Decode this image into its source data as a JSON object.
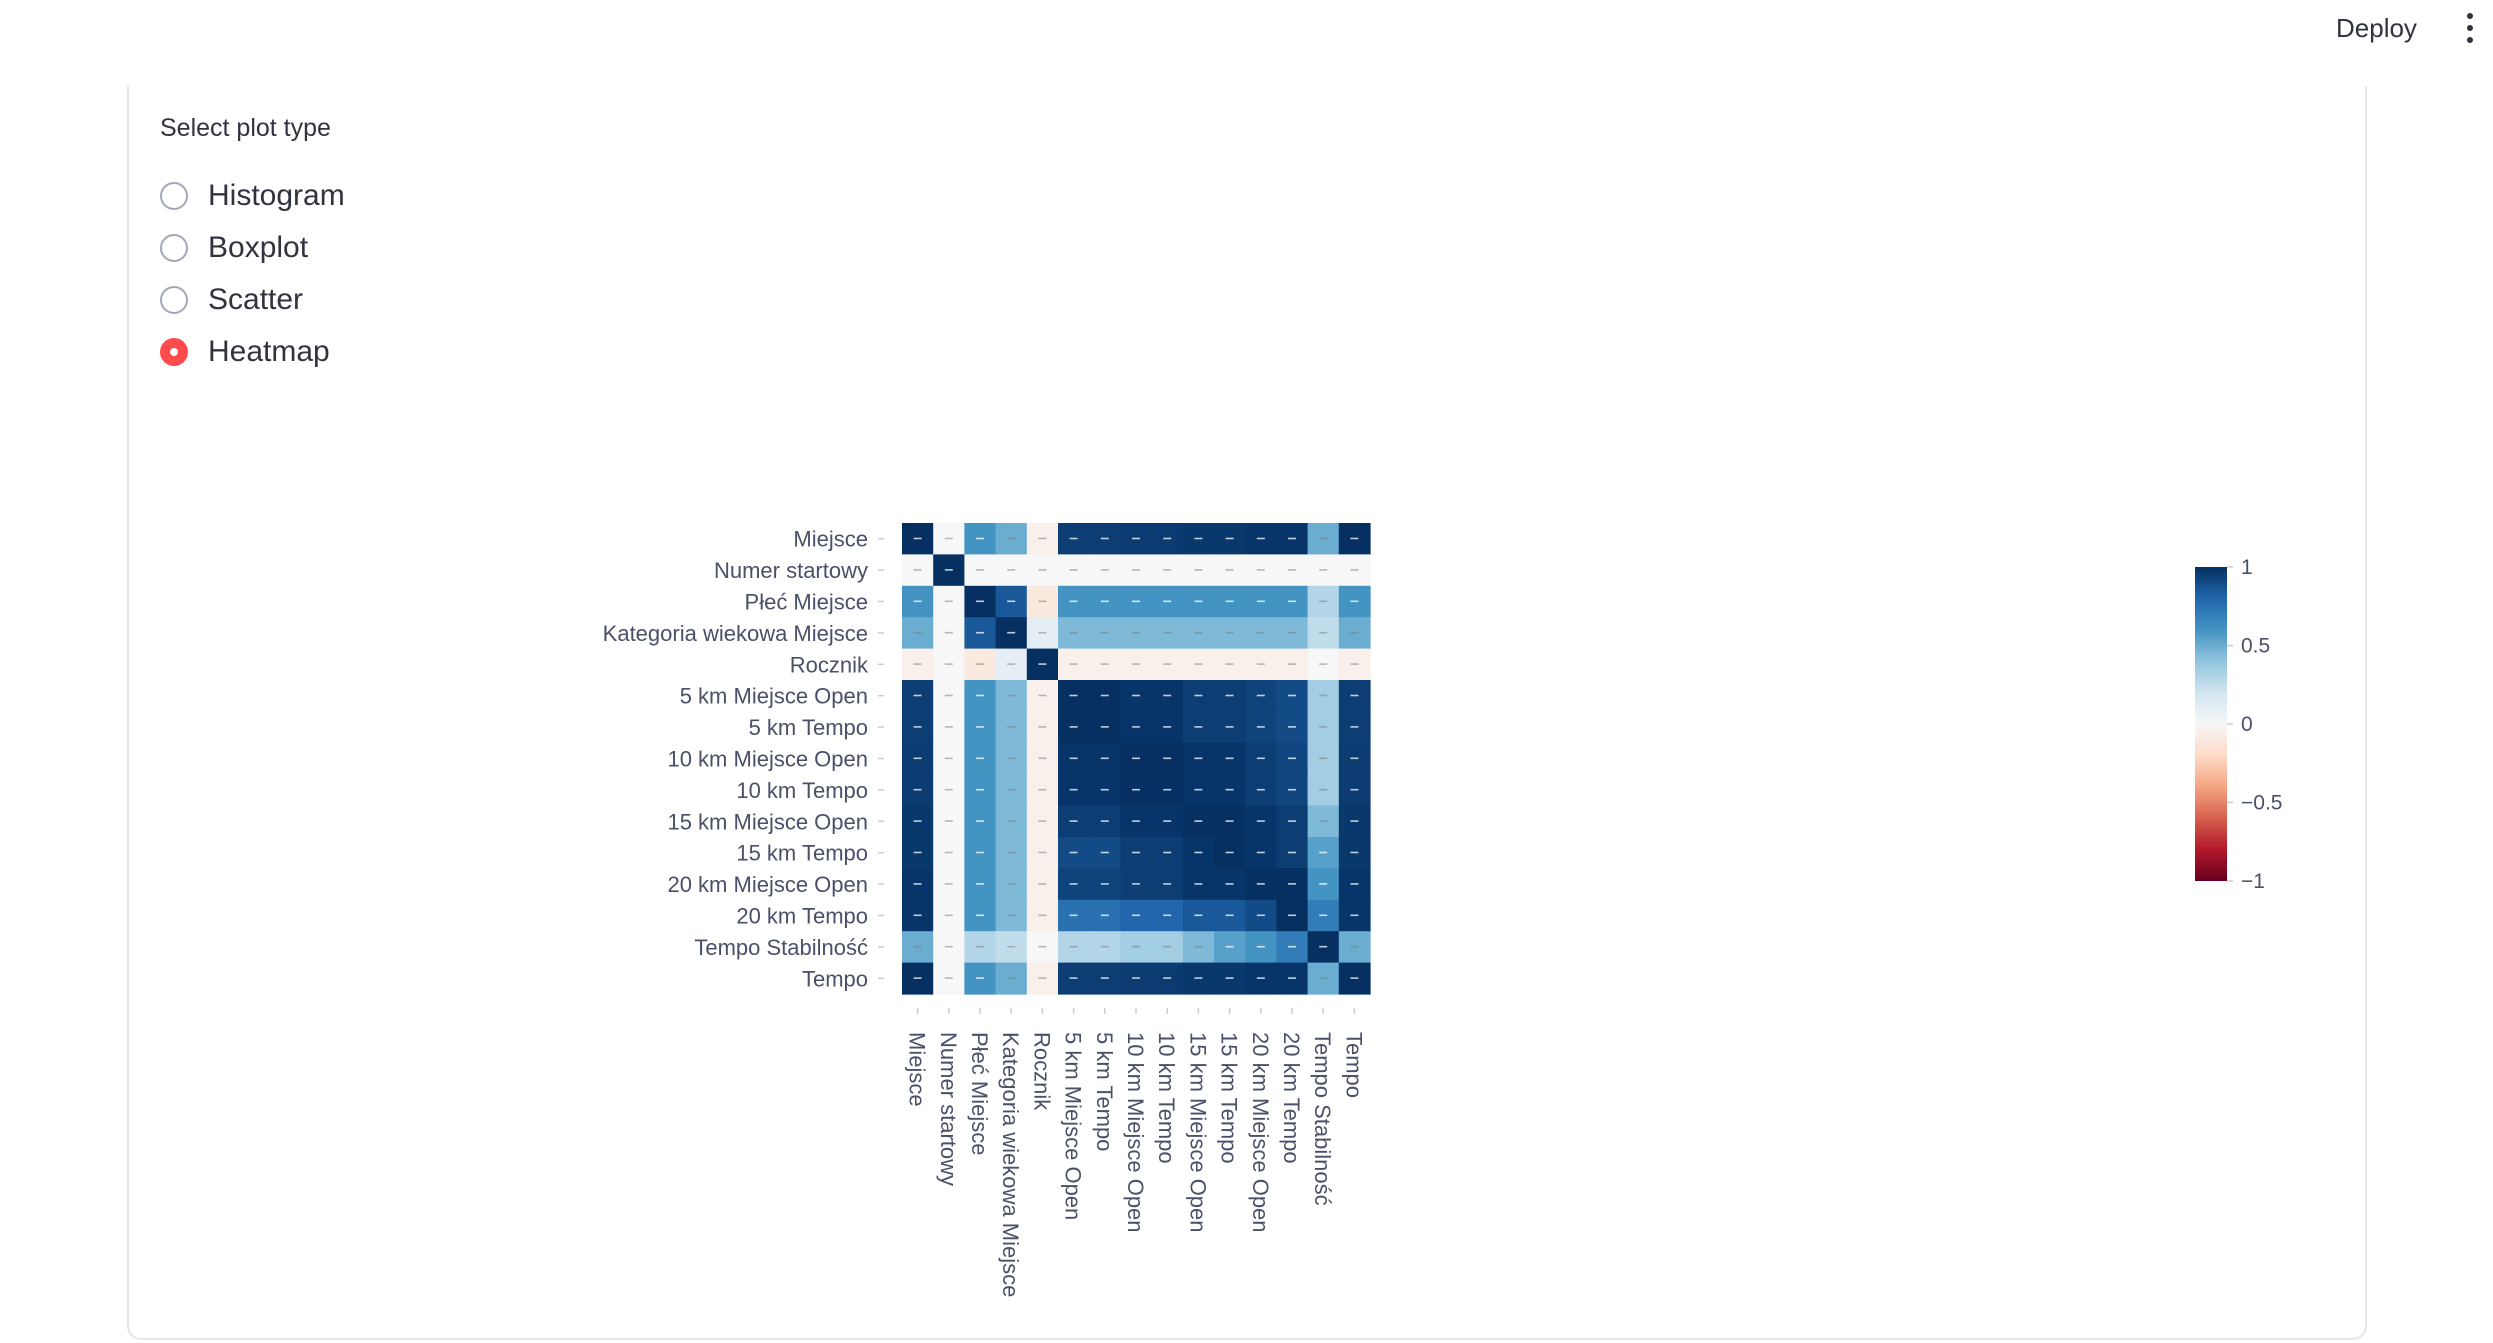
{
  "header": {
    "deploy_label": "Deploy",
    "menu_icon": "more-vertical-icon"
  },
  "plot_selector": {
    "label": "Select plot type",
    "options": [
      "Histogram",
      "Boxplot",
      "Scatter",
      "Heatmap"
    ],
    "selected": "Heatmap"
  },
  "colors": {
    "accent": "#ff4b4b",
    "text": "#31333f",
    "border": "#e6e6ea"
  },
  "chart_data": {
    "type": "heatmap",
    "title": "",
    "labels": [
      "Miejsce",
      "Numer startowy",
      "Płeć Miejsce",
      "Kategoria wiekowa Miejsce",
      "Rocznik",
      "5 km Miejsce Open",
      "5 km Tempo",
      "10 km Miejsce Open",
      "10 km Tempo",
      "15 km Miejsce Open",
      "15 km Tempo",
      "20 km Miejsce Open",
      "20 km Tempo",
      "Tempo Stabilność",
      "Tempo"
    ],
    "matrix": [
      [
        1,
        0,
        0.6,
        0.5,
        -0.05,
        0.95,
        0.95,
        0.96,
        0.96,
        0.97,
        0.97,
        0.98,
        0.98,
        0.5,
        1
      ],
      [
        0,
        1,
        0,
        0,
        0,
        0,
        0,
        0,
        0,
        0,
        0,
        0,
        0,
        0,
        0
      ],
      [
        0.6,
        0,
        1,
        0.85,
        -0.1,
        0.6,
        0.6,
        0.6,
        0.6,
        0.6,
        0.6,
        0.6,
        0.6,
        0.3,
        0.6
      ],
      [
        0.5,
        0,
        0.85,
        1,
        0.1,
        0.45,
        0.45,
        0.45,
        0.45,
        0.45,
        0.45,
        0.45,
        0.45,
        0.25,
        0.5
      ],
      [
        -0.05,
        0,
        -0.1,
        0.1,
        1,
        -0.05,
        -0.05,
        -0.05,
        -0.05,
        -0.05,
        -0.05,
        -0.05,
        -0.05,
        0,
        -0.05
      ],
      [
        0.95,
        0,
        0.6,
        0.45,
        -0.05,
        1,
        1,
        0.98,
        0.98,
        0.95,
        0.95,
        0.93,
        0.9,
        0.35,
        0.95
      ],
      [
        0.95,
        0,
        0.6,
        0.45,
        -0.05,
        1,
        1,
        0.98,
        0.98,
        0.95,
        0.95,
        0.93,
        0.9,
        0.35,
        0.95
      ],
      [
        0.96,
        0,
        0.6,
        0.45,
        -0.05,
        0.98,
        0.98,
        1,
        1,
        0.98,
        0.98,
        0.95,
        0.92,
        0.35,
        0.96
      ],
      [
        0.96,
        0,
        0.6,
        0.45,
        -0.05,
        0.98,
        0.98,
        1,
        1,
        0.98,
        0.98,
        0.95,
        0.92,
        0.35,
        0.96
      ],
      [
        0.97,
        0,
        0.6,
        0.45,
        -0.05,
        0.95,
        0.95,
        0.98,
        0.98,
        1,
        1,
        0.98,
        0.95,
        0.45,
        0.97
      ],
      [
        0.97,
        0,
        0.6,
        0.45,
        -0.05,
        0.9,
        0.9,
        0.95,
        0.95,
        0.98,
        1,
        0.98,
        0.95,
        0.55,
        0.97
      ],
      [
        0.98,
        0,
        0.6,
        0.45,
        -0.05,
        0.93,
        0.93,
        0.95,
        0.95,
        0.98,
        0.98,
        1,
        1,
        0.6,
        0.98
      ],
      [
        0.98,
        0,
        0.6,
        0.45,
        -0.05,
        0.75,
        0.75,
        0.8,
        0.8,
        0.85,
        0.85,
        0.9,
        1,
        0.7,
        0.98
      ],
      [
        0.5,
        0,
        0.3,
        0.25,
        0,
        0.3,
        0.3,
        0.35,
        0.35,
        0.45,
        0.55,
        0.6,
        0.7,
        1,
        0.5
      ],
      [
        1,
        0,
        0.6,
        0.5,
        -0.05,
        0.95,
        0.95,
        0.96,
        0.96,
        0.97,
        0.97,
        0.98,
        0.98,
        0.5,
        1
      ]
    ],
    "colorscale": "RdBu",
    "zrange": [
      -1,
      1
    ],
    "colorbar_ticks": [
      1,
      0.5,
      0,
      -0.5,
      -1
    ],
    "colorbar_tick_labels": [
      "1",
      "0.5",
      "0",
      "−0.5",
      "−1"
    ]
  }
}
